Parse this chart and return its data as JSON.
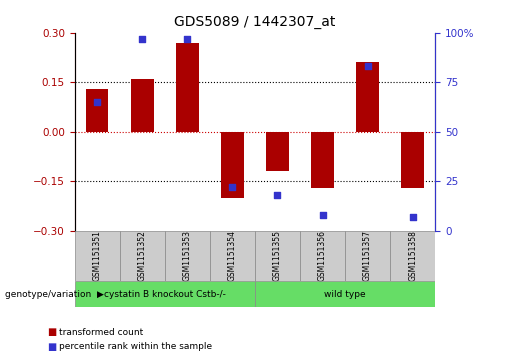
{
  "title": "GDS5089 / 1442307_at",
  "samples": [
    "GSM1151351",
    "GSM1151352",
    "GSM1151353",
    "GSM1151354",
    "GSM1151355",
    "GSM1151356",
    "GSM1151357",
    "GSM1151358"
  ],
  "transformed_count": [
    0.13,
    0.16,
    0.27,
    -0.2,
    -0.12,
    -0.17,
    0.21,
    -0.17
  ],
  "percentile_rank": [
    65,
    97,
    97,
    22,
    18,
    8,
    83,
    7
  ],
  "ylim_left": [
    -0.3,
    0.3
  ],
  "ylim_right": [
    0,
    100
  ],
  "yticks_left": [
    -0.3,
    -0.15,
    0,
    0.15,
    0.3
  ],
  "yticks_right": [
    0,
    25,
    50,
    75,
    100
  ],
  "group1_label": "cystatin B knockout Cstb-/-",
  "group1_count": 4,
  "group2_label": "wild type",
  "group2_count": 4,
  "group_row_label": "genotype/variation",
  "bar_color": "#AA0000",
  "dot_color": "#3333CC",
  "group1_color": "#66DD66",
  "group2_color": "#66DD66",
  "sample_box_color": "#CCCCCC",
  "legend_bar_label": "transformed count",
  "legend_dot_label": "percentile rank within the sample",
  "dotted_line_color": "#000000",
  "zero_line_color": "#CC0000",
  "bar_width": 0.5,
  "right_tick_labels": [
    "0",
    "25",
    "50",
    "75",
    "100%"
  ]
}
